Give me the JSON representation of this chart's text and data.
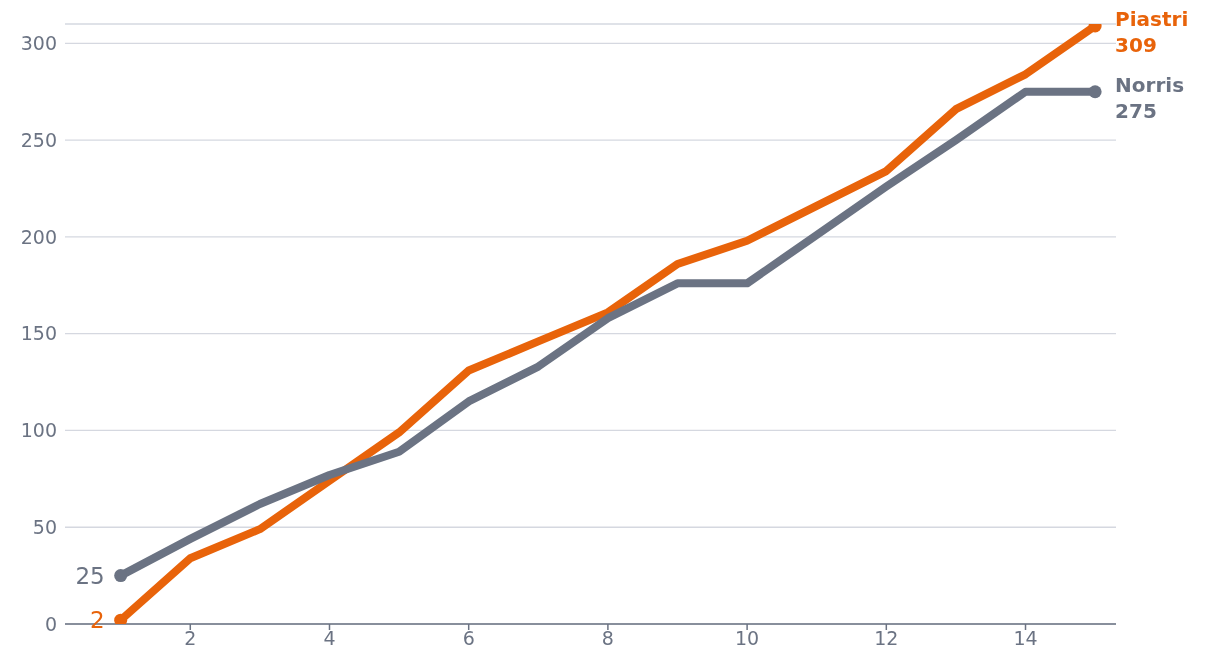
{
  "chart_data": {
    "type": "line",
    "x": [
      1,
      2,
      3,
      4,
      5,
      6,
      7,
      8,
      9,
      10,
      11,
      12,
      13,
      14,
      15
    ],
    "series": [
      {
        "name": "Piastri",
        "color": "#e8630a",
        "values": [
          2,
          34,
          49,
          74,
          99,
          131,
          146,
          161,
          186,
          198,
          216,
          234,
          266,
          284,
          309
        ],
        "value_labels": [
          "2",
          null,
          null,
          null,
          null,
          null,
          null,
          null,
          null,
          null,
          null,
          null,
          null,
          null,
          "309"
        ]
      },
      {
        "name": "Norris",
        "color": "#6b7383",
        "values": [
          25,
          44,
          62,
          77,
          89,
          115,
          133,
          158,
          176,
          176,
          201,
          226,
          250,
          275,
          275
        ],
        "value_labels": [
          "25",
          null,
          null,
          null,
          null,
          null,
          null,
          null,
          null,
          null,
          null,
          null,
          null,
          null,
          "275"
        ]
      }
    ],
    "xlim": [
      0.2,
      15.3
    ],
    "xticks": [
      2,
      4,
      6,
      8,
      10,
      12,
      14
    ],
    "ylim": [
      0,
      310
    ],
    "yticks": [
      0,
      50,
      100,
      150,
      200,
      250,
      300
    ],
    "grid": "y",
    "line_style": "solid"
  }
}
